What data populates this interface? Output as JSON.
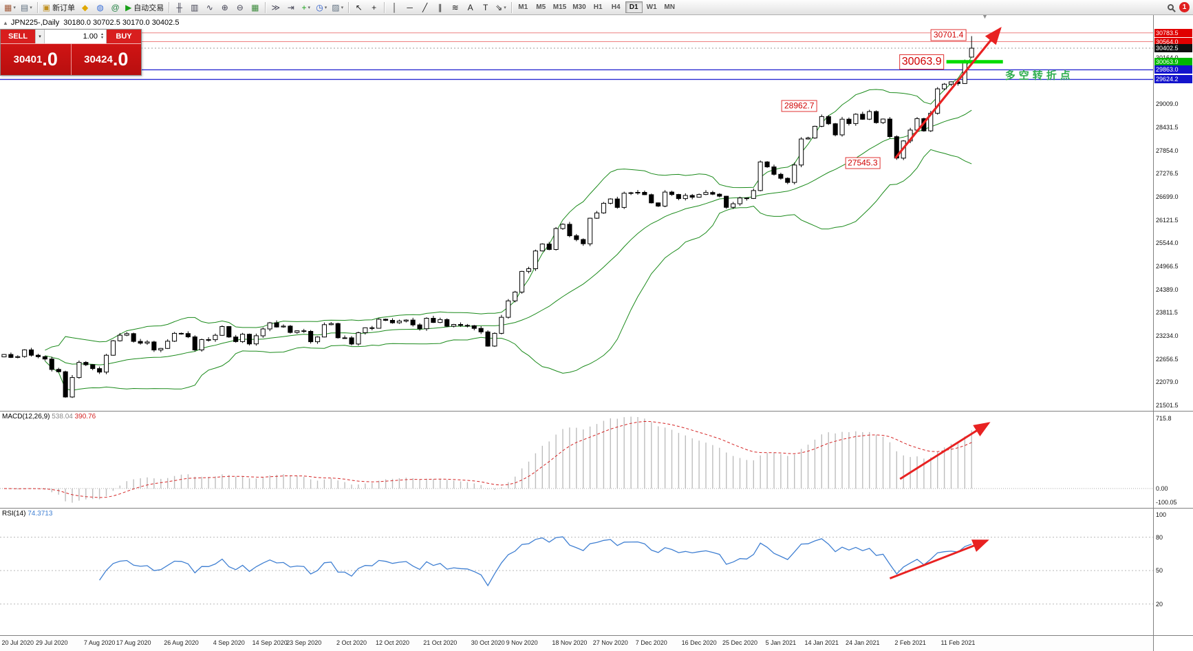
{
  "toolbar": {
    "items": [
      {
        "type": "btn",
        "name": "new-chart-button",
        "glyph": "▦",
        "color": "#a05838",
        "caret": true
      },
      {
        "type": "btn",
        "name": "profiles-button",
        "glyph": "▤",
        "color": "#607080",
        "caret": true
      },
      {
        "type": "sep"
      },
      {
        "type": "btn",
        "name": "new-order-button",
        "glyph": "▣",
        "color": "#c09020",
        "label": "新订单"
      },
      {
        "type": "btn",
        "name": "metaeditor-button",
        "glyph": "◆",
        "color": "#e0a800"
      },
      {
        "type": "btn",
        "name": "strategy-tester-button",
        "glyph": "◍",
        "color": "#3a6fd8"
      },
      {
        "type": "btn",
        "name": "market-button",
        "glyph": "@",
        "color": "#208040"
      },
      {
        "type": "btn",
        "name": "autotrading-button",
        "glyph": "▶",
        "color": "#18a018",
        "label": "自动交易"
      },
      {
        "type": "sep"
      },
      {
        "type": "btn",
        "name": "bar-chart-button",
        "glyph": "╫",
        "color": "#445"
      },
      {
        "type": "btn",
        "name": "candlestick-chart-button",
        "glyph": "▥",
        "color": "#445"
      },
      {
        "type": "btn",
        "name": "line-chart-button",
        "glyph": "∿",
        "color": "#445"
      },
      {
        "type": "btn",
        "name": "zoom-in-button",
        "glyph": "⊕",
        "color": "#445"
      },
      {
        "type": "btn",
        "name": "zoom-out-button",
        "glyph": "⊖",
        "color": "#445"
      },
      {
        "type": "btn",
        "name": "tile-windows-button",
        "glyph": "▦",
        "color": "#3a8a3a"
      },
      {
        "type": "sep"
      },
      {
        "type": "btn",
        "name": "auto-scroll-button",
        "glyph": "≫",
        "color": "#445"
      },
      {
        "type": "btn",
        "name": "chart-shift-button",
        "glyph": "⇥",
        "color": "#445"
      },
      {
        "type": "btn",
        "name": "indicators-button",
        "glyph": "+",
        "color": "#18a018",
        "caret": true
      },
      {
        "type": "btn",
        "name": "periods-button",
        "glyph": "◷",
        "color": "#2858c8",
        "caret": true
      },
      {
        "type": "btn",
        "name": "templates-button",
        "glyph": "▨",
        "color": "#607080",
        "caret": true
      },
      {
        "type": "sep"
      },
      {
        "type": "btn",
        "name": "cursor-button",
        "glyph": "↖",
        "color": "#222"
      },
      {
        "type": "btn",
        "name": "crosshair-button",
        "glyph": "+",
        "color": "#222"
      },
      {
        "type": "sep"
      },
      {
        "type": "btn",
        "name": "vertical-line-button",
        "glyph": "│",
        "color": "#222"
      },
      {
        "type": "btn",
        "name": "horizontal-line-button",
        "glyph": "─",
        "color": "#222"
      },
      {
        "type": "btn",
        "name": "trendline-button",
        "glyph": "╱",
        "color": "#222"
      },
      {
        "type": "btn",
        "name": "channel-button",
        "glyph": "∥",
        "color": "#222"
      },
      {
        "type": "btn",
        "name": "fibonacci-button",
        "glyph": "≋",
        "color": "#222"
      },
      {
        "type": "btn",
        "name": "text-button",
        "glyph": "A",
        "color": "#222"
      },
      {
        "type": "btn",
        "name": "text-label-button",
        "glyph": "T",
        "color": "#222"
      },
      {
        "type": "btn",
        "name": "arrows-button",
        "glyph": "⇘",
        "color": "#222",
        "caret": true
      },
      {
        "type": "sep"
      }
    ],
    "timeframes": [
      "M1",
      "M5",
      "M15",
      "M30",
      "H1",
      "H4",
      "D1",
      "W1",
      "MN"
    ],
    "active_timeframe": "D1",
    "notification_count": "1"
  },
  "symbol_header": {
    "collapse_icon": "▲",
    "title": "JPN225-,Daily",
    "ohlc": "30180.0 30702.5 30170.0 30402.5"
  },
  "trade_panel": {
    "sell_label": "SELL",
    "buy_label": "BUY",
    "lot_value": "1.00",
    "sell_price_main": "30401",
    "sell_price_big": ".0",
    "buy_price_main": "30424",
    "buy_price_big": ".0"
  },
  "chart_data": {
    "type": "candlestick",
    "symbol": "JPN225-",
    "timeframe": "Daily",
    "price_min": 21365,
    "price_max": 31225,
    "closes": [
      22770,
      22696,
      22717,
      22884,
      22751,
      22715,
      22657,
      22397,
      22339,
      21710,
      22195,
      22573,
      22514,
      22418,
      22330,
      22750,
      23110,
      23249,
      23289,
      23096,
      23051,
      23081,
      22880,
      22920,
      23100,
      23296,
      23290,
      23208,
      22882,
      23140,
      23138,
      23247,
      23466,
      23205,
      23090,
      23274,
      23033,
      23235,
      23406,
      23559,
      23455,
      23476,
      23319,
      23360,
      23346,
      23087,
      23205,
      23512,
      23539,
      23185,
      23185,
      23030,
      23312,
      23434,
      23423,
      23647,
      23620,
      23559,
      23602,
      23627,
      23507,
      23411,
      23671,
      23567,
      23639,
      23474,
      23517,
      23494,
      23486,
      23419,
      23332,
      22977,
      23295,
      23695,
      24105,
      24325,
      24840,
      24906,
      25349,
      25521,
      25385,
      25907,
      26014,
      25728,
      25634,
      25527,
      26165,
      26297,
      26537,
      26645,
      26434,
      26788,
      26800,
      26809,
      26751,
      26547,
      26467,
      26817,
      26756,
      26653,
      26732,
      26688,
      26757,
      26806,
      26763,
      26714,
      26436,
      26524,
      26668,
      26657,
      26854,
      27568,
      27444,
      27258,
      27159,
      27056,
      27490,
      28139,
      28164,
      28456,
      28698,
      28519,
      28242,
      28633,
      28523,
      28756,
      28631,
      28822,
      28546,
      28635,
      28197,
      27663,
      28091,
      28362,
      28646,
      28341,
      28779,
      29388,
      29505,
      29563,
      29520,
      30084,
      30402.5
    ],
    "current_bar": {
      "open": 30180.0,
      "high": 30702.5,
      "low": 30170.0,
      "close": 30402.5
    },
    "bollinger": {
      "period": 20,
      "deviation": 2,
      "color": "#1a8a1a"
    },
    "price_axis": {
      "regular": [
        30164.0,
        29009.0,
        28431.5,
        27854.0,
        27276.5,
        26699.0,
        26121.5,
        25544.0,
        24966.5,
        24389.0,
        23811.5,
        23234.0,
        22656.5,
        22079.0,
        21501.5
      ],
      "tags": [
        {
          "text": "30783.5",
          "price": 30783.5,
          "bg": "#e00000"
        },
        {
          "text": "30564.0",
          "price": 30564.0,
          "bg": "#e00000"
        },
        {
          "text": "30402.5",
          "price": 30402.5,
          "bg": "#101010"
        },
        {
          "text": "30063.9",
          "price": 30063.9,
          "bg": "#00b800"
        },
        {
          "text": "29863.0",
          "price": 29863.0,
          "bg": "#1414cc"
        },
        {
          "text": "29624.2",
          "price": 29624.2,
          "bg": "#1414cc"
        }
      ]
    },
    "hlines": [
      {
        "price": 30783.5,
        "color": "#ee8080",
        "width": 1
      },
      {
        "price": 30564.0,
        "color": "#ee8080",
        "width": 1
      },
      {
        "price": 29863.0,
        "color": "#2a2ad2",
        "width": 1.4
      },
      {
        "price": 29624.2,
        "color": "#2a2ad2",
        "width": 1.4
      }
    ],
    "bid_line": {
      "price": 30402.5,
      "color": "#999999"
    },
    "support_segment": {
      "price": 30063.9,
      "from_index": 138.3,
      "to_index": 146.6,
      "color": "#00dc00",
      "width": 5
    },
    "price_labels": [
      {
        "text": "30701.4",
        "anchor_index": 141.2,
        "price": 30725,
        "size": 12
      },
      {
        "text": "30063.9",
        "anchor_index": 138.0,
        "price": 30063.9,
        "size": 16
      },
      {
        "text": "28962.7",
        "anchor_index": 119.3,
        "price": 28962.7,
        "size": 12
      },
      {
        "text": "27545.3",
        "anchor_index": 128.6,
        "price": 27545.3,
        "size": 12
      }
    ],
    "trend_note": {
      "text": "多空转折点",
      "index": 146.9,
      "price": 29740,
      "color": "#2fae4f"
    },
    "arrows": {
      "main": {
        "from_index": 130.8,
        "from_price": 27660,
        "to_index": 146.2,
        "to_price": 30890,
        "color": "#e82222"
      },
      "macd": {
        "from_index": 131.5,
        "from_frac": 0.7,
        "to_index": 144.5,
        "to_frac": 0.12,
        "color": "#e82222"
      },
      "rsi": {
        "from_index": 130.0,
        "from_value": 43,
        "to_index": 144.3,
        "to_value": 77,
        "color": "#e82222"
      }
    },
    "dates": {
      "labels": [
        "20 Jul 2020",
        "29 Jul 2020",
        "7 Aug 2020",
        "17 Aug 2020",
        "26 Aug 2020",
        "4 Sep 2020",
        "14 Sep 2020",
        "23 Sep 2020",
        "2 Oct 2020",
        "12 Oct 2020",
        "21 Oct 2020",
        "30 Oct 2020",
        "9 Nov 2020",
        "18 Nov 2020",
        "27 Nov 2020",
        "7 Dec 2020",
        "16 Dec 2020",
        "25 Dec 2020",
        "5 Jan 2021",
        "14 Jan 2021",
        "24 Jan 2021",
        "2 Feb 2021",
        "11 Feb 2021"
      ],
      "indices": [
        2,
        7,
        14,
        19,
        26,
        33,
        39,
        44,
        51,
        57,
        64,
        71,
        76,
        83,
        89,
        95,
        102,
        108,
        114,
        120,
        126,
        133,
        140
      ]
    },
    "macd": {
      "name": "MACD(12,26,9)",
      "value_main": "538.04",
      "value_signal": "390.76",
      "fast": 12,
      "slow": 26,
      "signal": 9,
      "axis_top": "715.8",
      "axis_zero": "0.00",
      "axis_bottom": "-100.05",
      "hist_color": "#bdbdbd",
      "signal_color": "#d42424"
    },
    "rsi": {
      "name": "RSI(14)",
      "value": "74.3713",
      "period": 14,
      "color": "#3f7fd2",
      "levels": [
        80,
        50,
        20
      ],
      "axis_labels": [
        "100",
        "80",
        "50",
        "20"
      ]
    }
  }
}
